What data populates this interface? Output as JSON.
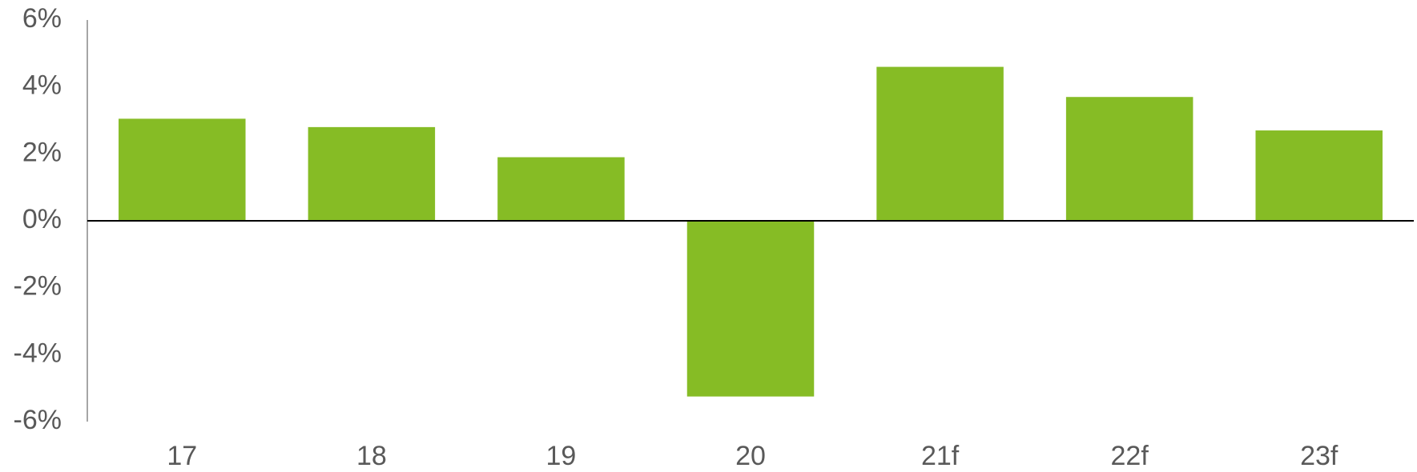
{
  "chart_data": {
    "type": "bar",
    "categories": [
      "17",
      "18",
      "19",
      "20",
      "21f",
      "22f",
      "23f"
    ],
    "values": [
      3.05,
      2.8,
      1.9,
      -5.25,
      4.6,
      3.7,
      2.7
    ],
    "color": "#86bc25",
    "ylim": [
      -6,
      6
    ],
    "yticks": [
      {
        "value": -6,
        "label": "-6%"
      },
      {
        "value": -4,
        "label": "-4%"
      },
      {
        "value": -2,
        "label": "-2%"
      },
      {
        "value": 0,
        "label": "0%"
      },
      {
        "value": 2,
        "label": "2%"
      },
      {
        "value": 4,
        "label": "4%"
      },
      {
        "value": 6,
        "label": "6%"
      }
    ],
    "grid": false
  }
}
